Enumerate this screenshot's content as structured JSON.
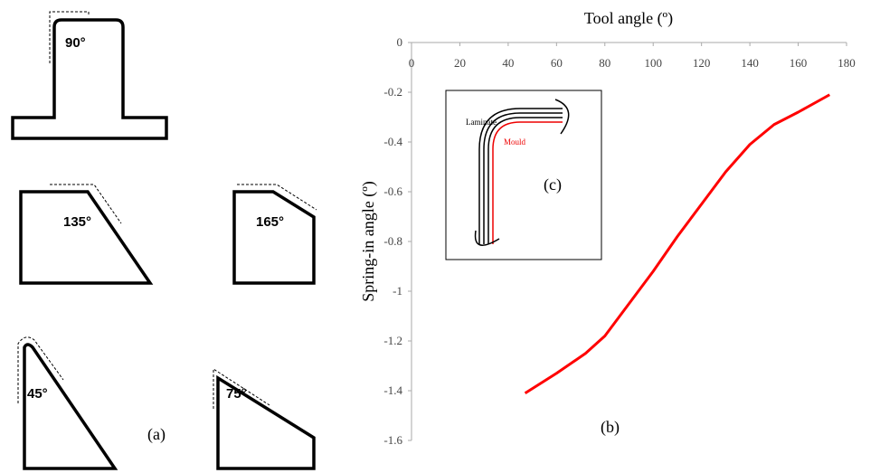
{
  "chart_data": {
    "type": "line",
    "x_label": "Tool angle (º)",
    "y_label": "Spring-in angle (º)",
    "x": [
      47,
      60,
      72,
      80,
      90,
      100,
      110,
      120,
      130,
      140,
      150,
      160,
      173
    ],
    "series": [
      {
        "name": null,
        "color": "#ff0000",
        "values": [
          -1.41,
          -1.33,
          -1.25,
          -1.18,
          -1.05,
          -0.92,
          -0.78,
          -0.65,
          -0.52,
          -0.41,
          -0.33,
          -0.28,
          -0.21
        ]
      }
    ],
    "xlim": [
      0,
      180
    ],
    "xticks": [
      0,
      20,
      40,
      60,
      80,
      100,
      120,
      140,
      160,
      180
    ],
    "ylim": [
      -1.6,
      0
    ],
    "yticks": [
      0,
      -0.2,
      -0.4,
      -0.6,
      -0.8,
      -1,
      -1.2,
      -1.4,
      -1.6
    ],
    "grid": false
  },
  "panels": {
    "a": "(a)",
    "b": "(b)",
    "c": "(c)"
  },
  "inset": {
    "laminate": "Laminate",
    "mould": "Mould"
  },
  "shapes": [
    "90°",
    "135°",
    "165°",
    "45°",
    "75°"
  ]
}
